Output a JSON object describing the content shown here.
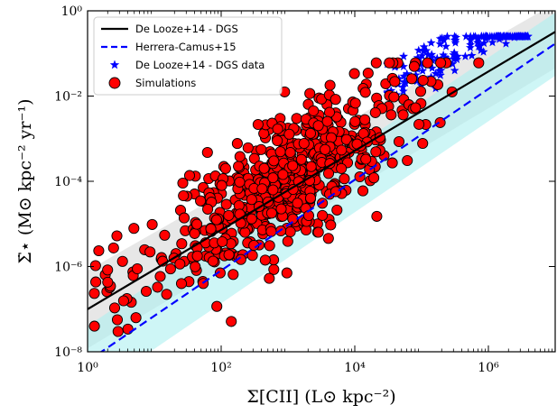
{
  "chart_data": {
    "type": "scatter",
    "x_scale": "log",
    "y_scale": "log",
    "xlim": [
      1,
      10000000
    ],
    "ylim": [
      1e-08,
      1
    ],
    "grid": false,
    "legend_position": "top-left",
    "xlabel": "Σ[CII] (L⊙ kpc⁻²)",
    "ylabel": "Σ̇⋆ (M⊙ kpc⁻² yr⁻¹)",
    "x_ticks": [
      {
        "value": 1,
        "label": "10⁰"
      },
      {
        "value": 100,
        "label": "10²"
      },
      {
        "value": 10000,
        "label": "10⁴"
      },
      {
        "value": 1000000,
        "label": "10⁶"
      }
    ],
    "y_ticks": [
      {
        "value": 1e-08,
        "label": "10⁻⁸"
      },
      {
        "value": 1e-06,
        "label": "10⁻⁶"
      },
      {
        "value": 0.0001,
        "label": "10⁻⁴"
      },
      {
        "value": 0.01,
        "label": "10⁻²"
      },
      {
        "value": 1,
        "label": "10⁰"
      }
    ],
    "series": [
      {
        "name": "De Looze+14 - DGS",
        "kind": "line",
        "color": "#000000",
        "style": "solid",
        "x": [
          1,
          10000000
        ],
        "y": [
          1e-07,
          0.32
        ],
        "band": {
          "color": "#d3d3d3",
          "lower": [
            1.2e-08,
            0.045
          ],
          "upper": [
            8e-07,
            1.5
          ]
        }
      },
      {
        "name": "Herrera-Camus+15",
        "kind": "line",
        "color": "#0000ff",
        "style": "dashed",
        "x": [
          1,
          10000000
        ],
        "y": [
          6e-09,
          0.17
        ],
        "band": {
          "color": "#aef0f0",
          "lower": [
            1e-09,
            0.03
          ],
          "upper": [
            4e-08,
            0.9
          ]
        }
      },
      {
        "name": "De Looze+14 - DGS data",
        "kind": "points",
        "marker": "star",
        "color": "#0000ff",
        "x_range": [
          30000,
          4000000
        ],
        "y_range": [
          0.002,
          0.25
        ],
        "slope_dex": 0.97,
        "intercept_dex": -6.2,
        "count": 170
      },
      {
        "name": "Simulations",
        "kind": "points",
        "marker": "circle",
        "color": "#ff0000",
        "edge_color": "#000000",
        "x_range": [
          1.2,
          2000000
        ],
        "y_range": [
          1e-08,
          0.06
        ],
        "slope_dex": 0.95,
        "intercept_dex": -6.8,
        "count": 640
      }
    ]
  }
}
